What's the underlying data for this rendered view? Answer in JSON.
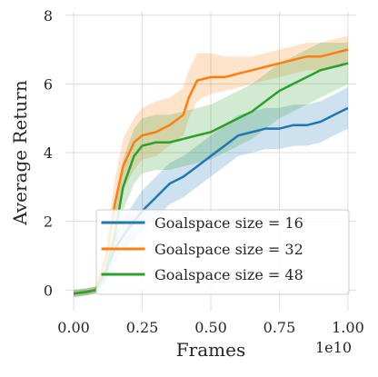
{
  "chart_data": {
    "type": "line",
    "xlabel": "Frames",
    "ylabel": "Average Return",
    "x_offset_label": "1e10",
    "xlim": [
      -0.03,
      1.03
    ],
    "ylim": [
      -0.6,
      8.1
    ],
    "xticks": [
      0.0,
      0.25,
      0.5,
      0.75,
      1.0
    ],
    "xtick_labels": [
      "0.00",
      "0.25",
      "0.50",
      "0.75",
      "1.00"
    ],
    "yticks": [
      0,
      2,
      4,
      6,
      8
    ],
    "ytick_labels": [
      "0",
      "2",
      "4",
      "6",
      "8"
    ],
    "grid": true,
    "legend_position": "lower-right",
    "series": [
      {
        "name": "Goalspace size = 16",
        "color": "#1f77b4",
        "x": [
          0.0,
          0.05,
          0.08,
          0.12,
          0.15,
          0.2,
          0.25,
          0.3,
          0.35,
          0.4,
          0.45,
          0.5,
          0.55,
          0.6,
          0.65,
          0.7,
          0.75,
          0.8,
          0.85,
          0.9,
          0.95,
          1.0
        ],
        "y": [
          -0.1,
          -0.05,
          0.0,
          0.6,
          1.2,
          1.8,
          2.3,
          2.7,
          3.1,
          3.3,
          3.6,
          3.9,
          4.2,
          4.5,
          4.6,
          4.7,
          4.7,
          4.8,
          4.8,
          4.9,
          5.1,
          5.3
        ],
        "lower": [
          -0.2,
          -0.15,
          -0.1,
          0.3,
          0.8,
          1.3,
          1.7,
          2.1,
          2.5,
          2.7,
          3.0,
          3.3,
          3.6,
          3.9,
          4.0,
          4.1,
          4.1,
          4.2,
          4.2,
          4.3,
          4.5,
          4.7
        ],
        "upper": [
          0.0,
          0.05,
          0.1,
          0.9,
          1.6,
          2.3,
          2.9,
          3.3,
          3.7,
          3.9,
          4.2,
          4.5,
          4.8,
          5.1,
          5.2,
          5.3,
          5.3,
          5.4,
          5.4,
          5.5,
          5.7,
          5.9
        ]
      },
      {
        "name": "Goalspace size = 32",
        "color": "#ff7f0e",
        "x": [
          0.0,
          0.05,
          0.08,
          0.12,
          0.15,
          0.18,
          0.22,
          0.25,
          0.3,
          0.35,
          0.4,
          0.42,
          0.45,
          0.5,
          0.55,
          0.6,
          0.65,
          0.7,
          0.75,
          0.8,
          0.85,
          0.9,
          0.95,
          1.0
        ],
        "y": [
          -0.1,
          -0.05,
          0.0,
          1.0,
          2.5,
          3.6,
          4.3,
          4.5,
          4.6,
          4.8,
          5.1,
          5.6,
          6.1,
          6.2,
          6.2,
          6.3,
          6.4,
          6.5,
          6.6,
          6.7,
          6.8,
          6.8,
          6.9,
          7.0
        ],
        "lower": [
          -0.2,
          -0.15,
          -0.1,
          0.6,
          1.9,
          2.9,
          3.5,
          3.8,
          3.9,
          4.2,
          4.5,
          5.0,
          5.5,
          5.7,
          5.8,
          5.9,
          6.0,
          6.1,
          6.2,
          6.3,
          6.4,
          6.4,
          6.5,
          6.6
        ],
        "upper": [
          0.0,
          0.05,
          0.1,
          1.5,
          3.2,
          4.4,
          5.0,
          5.3,
          5.5,
          5.6,
          5.9,
          6.4,
          6.9,
          6.9,
          6.8,
          6.8,
          6.8,
          6.9,
          7.0,
          7.1,
          7.2,
          7.2,
          7.3,
          7.4
        ]
      },
      {
        "name": "Goalspace size = 48",
        "color": "#2ca02c",
        "x": [
          0.0,
          0.05,
          0.08,
          0.12,
          0.15,
          0.18,
          0.22,
          0.25,
          0.3,
          0.35,
          0.4,
          0.45,
          0.5,
          0.55,
          0.6,
          0.65,
          0.7,
          0.75,
          0.8,
          0.85,
          0.9,
          0.95,
          1.0
        ],
        "y": [
          -0.1,
          -0.05,
          0.0,
          0.6,
          1.6,
          3.0,
          3.9,
          4.2,
          4.3,
          4.3,
          4.4,
          4.5,
          4.6,
          4.8,
          5.0,
          5.2,
          5.5,
          5.8,
          6.0,
          6.2,
          6.4,
          6.5,
          6.6
        ],
        "lower": [
          -0.2,
          -0.15,
          -0.1,
          0.3,
          1.1,
          2.3,
          3.1,
          3.4,
          3.5,
          3.5,
          3.6,
          3.7,
          3.8,
          4.0,
          4.2,
          4.4,
          4.7,
          5.0,
          5.2,
          5.4,
          5.6,
          5.8,
          6.0
        ],
        "upper": [
          0.0,
          0.05,
          0.1,
          1.0,
          2.2,
          3.8,
          4.7,
          5.0,
          5.1,
          5.1,
          5.2,
          5.3,
          5.4,
          5.6,
          5.8,
          6.0,
          6.3,
          6.6,
          6.8,
          7.0,
          7.2,
          7.2,
          7.2
        ]
      }
    ]
  }
}
